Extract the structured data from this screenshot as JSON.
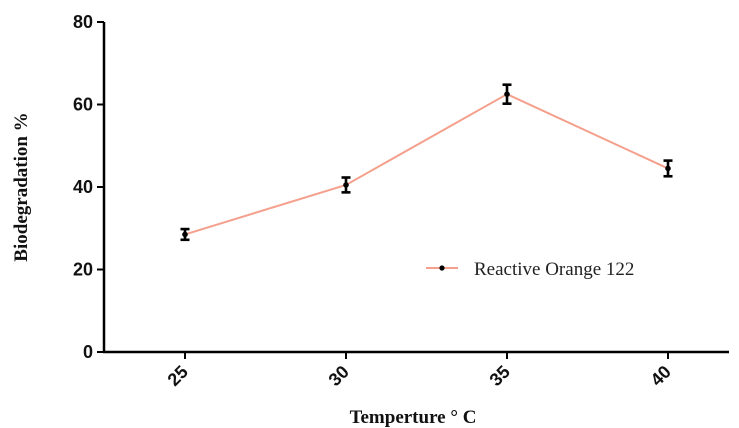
{
  "chart_data": {
    "type": "line",
    "xlabel": "Temperture ° C",
    "ylabel": "Biodegradation %",
    "categories": [
      "25",
      "30",
      "35",
      "40"
    ],
    "ylim": [
      0,
      80
    ],
    "y_ticks": [
      "0",
      "20",
      "40",
      "60",
      "80"
    ],
    "series": [
      {
        "name": "Reactive Orange 122",
        "values": [
          28.5,
          40.5,
          62.5,
          44.5
        ],
        "errors": [
          1.3,
          1.8,
          2.3,
          1.9
        ],
        "color": "#f4a08c",
        "marker_color": "#000000"
      }
    ],
    "grid": false,
    "legend_position": "right"
  }
}
